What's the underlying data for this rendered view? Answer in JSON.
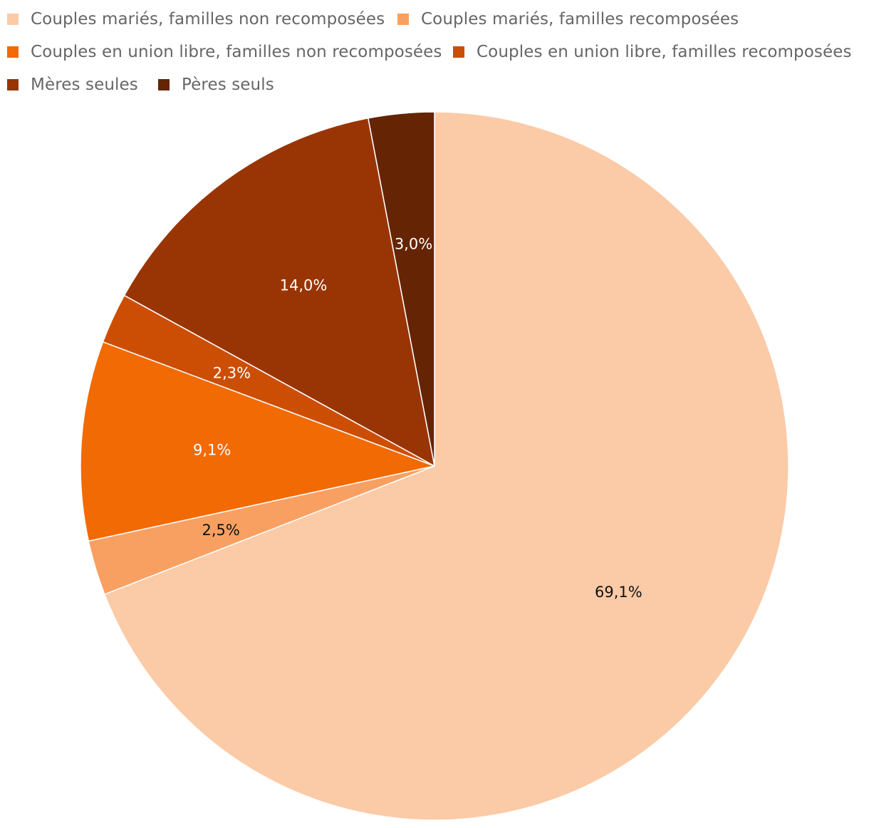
{
  "chart_data": {
    "type": "pie",
    "title": "",
    "legend_position": "top",
    "categories": [
      "Couples mariés, familles non recomposées",
      "Couples mariés, familles recomposées",
      "Couples en union libre, familles non recomposées",
      "Couples en union libre, familles recomposées",
      "Mères seules",
      "Pères seuls"
    ],
    "values": [
      69.1,
      2.5,
      9.1,
      2.3,
      14.0,
      3.0
    ],
    "value_labels": [
      "69,1%",
      "2,5%",
      "9,1%",
      "2,3%",
      "14,0%",
      "3,0%"
    ],
    "colors": [
      "#fbcaa6",
      "#f8a062",
      "#f26a04",
      "#cc4e04",
      "#993504",
      "#652404"
    ],
    "label_colors": [
      "#111111",
      "#111111",
      "#ffffff",
      "#ffffff",
      "#ffffff",
      "#ffffff"
    ],
    "start_angle": "12 o'clock",
    "direction": "clockwise"
  }
}
